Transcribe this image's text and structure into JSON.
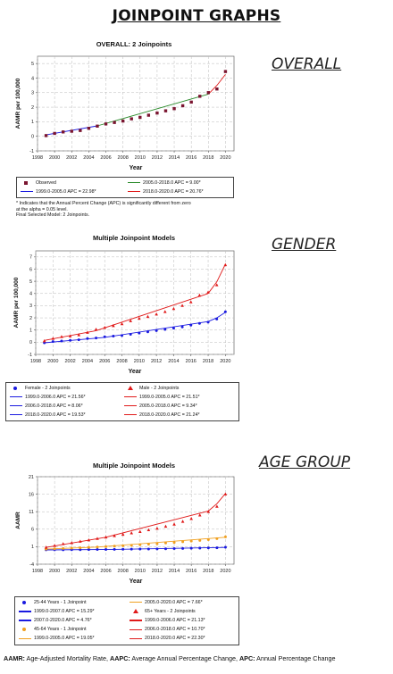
{
  "page": {
    "title": "JOINPOINT GRAPHS",
    "footer_bold": "AAMR:",
    "footer_text": " Age-Adjusted Mortality Rate, ",
    "footer_bold2": "AAPC:",
    "footer_text2": " Average Annual Percentage Change, ",
    "footer_bold3": "APC:",
    "footer_text3": " Annual Percentage Change"
  },
  "sections": {
    "overall": "OVERALL",
    "gender": "GENDER",
    "age_group": "AGE GROUP"
  },
  "colors": {
    "observed": "#7a1530",
    "female": "#1a1ae0",
    "male": "#e01a1a",
    "green": "#2a8a2a",
    "age_25_44": "#1a1ae0",
    "age_45_64": "#f0a020",
    "age_65": "#e01a1a"
  },
  "chart_data": [
    {
      "type": "scatter",
      "title": "OVERALL: 2 Joinpoints",
      "xlabel": "Year",
      "ylabel": "AAMR per 100,000",
      "xlim": [
        1998,
        2021
      ],
      "ylim": [
        -1,
        5.5
      ],
      "xticks": [
        1998,
        2000,
        2002,
        2004,
        2006,
        2008,
        2010,
        2012,
        2014,
        2016,
        2018,
        2020
      ],
      "yticks": [
        -1,
        0,
        1,
        2,
        3,
        4,
        5
      ],
      "grid": true,
      "series": [
        {
          "name": "Observed",
          "marker": "square",
          "color": "#7a1530",
          "x": [
            1999,
            2000,
            2001,
            2002,
            2003,
            2004,
            2005,
            2006,
            2007,
            2008,
            2009,
            2010,
            2011,
            2012,
            2013,
            2014,
            2015,
            2016,
            2017,
            2018,
            2019,
            2020
          ],
          "values": [
            0.05,
            0.2,
            0.3,
            0.35,
            0.4,
            0.55,
            0.7,
            0.85,
            0.95,
            1.05,
            1.2,
            1.3,
            1.45,
            1.6,
            1.75,
            1.9,
            2.1,
            2.35,
            2.75,
            3.0,
            3.25,
            4.45
          ]
        }
      ],
      "fits": [
        {
          "label": "1999.0-2005.0 APC  =  22.98*",
          "color": "#1a1ae0",
          "x": [
            1999,
            2005
          ],
          "y": [
            0.1,
            0.72
          ]
        },
        {
          "label": "2005.0-2018.0 APC  =  9.00*",
          "color": "#2a8a2a",
          "x": [
            2005,
            2018
          ],
          "y": [
            0.72,
            2.9
          ]
        },
        {
          "label": "2018.0-2020.0 APC  =  20.76*",
          "color": "#e01a1a",
          "x": [
            2018,
            2019,
            2020
          ],
          "y": [
            2.9,
            3.5,
            4.25
          ]
        }
      ],
      "notes": [
        "* Indicates that the Annual Percent Change (APC) is significantly different from zero",
        "at the alpha = 0.05 level.",
        "Final Selected Model: 2 Joinpoints."
      ]
    },
    {
      "type": "scatter",
      "title": "Multiple Joinpoint Models",
      "xlabel": "Year",
      "ylabel": "AAMR per 100,000",
      "xlim": [
        1998,
        2021
      ],
      "ylim": [
        -1,
        7.5
      ],
      "xticks": [
        1998,
        2000,
        2002,
        2004,
        2006,
        2008,
        2010,
        2012,
        2014,
        2016,
        2018,
        2020
      ],
      "yticks": [
        -1,
        0,
        1,
        2,
        3,
        4,
        5,
        6,
        7
      ],
      "grid": true,
      "series": [
        {
          "name": "Female - 2 Joinpoints",
          "marker": "circle",
          "color": "#1a1ae0",
          "x": [
            1999,
            2000,
            2001,
            2002,
            2003,
            2004,
            2005,
            2006,
            2007,
            2008,
            2009,
            2010,
            2011,
            2012,
            2013,
            2014,
            2015,
            2016,
            2017,
            2018,
            2019,
            2020
          ],
          "values": [
            -0.05,
            0.05,
            0.1,
            0.15,
            0.2,
            0.3,
            0.35,
            0.45,
            0.5,
            0.55,
            0.65,
            0.75,
            0.85,
            0.95,
            1.05,
            1.15,
            1.25,
            1.4,
            1.55,
            1.65,
            1.9,
            2.5
          ]
        },
        {
          "name": "Male - 2 Joinpoints",
          "marker": "triangle",
          "color": "#e01a1a",
          "x": [
            1999,
            2000,
            2001,
            2002,
            2003,
            2004,
            2005,
            2006,
            2007,
            2008,
            2009,
            2010,
            2011,
            2012,
            2013,
            2014,
            2015,
            2016,
            2017,
            2018,
            2019,
            2020
          ],
          "values": [
            0.1,
            0.3,
            0.45,
            0.5,
            0.6,
            0.8,
            1.05,
            1.2,
            1.35,
            1.5,
            1.75,
            1.95,
            2.1,
            2.3,
            2.5,
            2.75,
            3.0,
            3.3,
            3.85,
            4.1,
            4.7,
            6.35
          ]
        }
      ],
      "fits": [
        {
          "label": "1999.0-2006.0 APC  =  21.56*",
          "color": "#1a1ae0",
          "x": [
            1999,
            2006
          ],
          "y": [
            -0.05,
            0.4
          ]
        },
        {
          "label": "2006.0-2018.0 APC  =  8.06*",
          "color": "#1a1ae0",
          "x": [
            2006,
            2018
          ],
          "y": [
            0.4,
            1.7
          ]
        },
        {
          "label": "2018.0-2020.0 APC  =  19.53*",
          "color": "#1a1ae0",
          "x": [
            2018,
            2019,
            2020
          ],
          "y": [
            1.7,
            2.0,
            2.45
          ]
        },
        {
          "label": "1999.0-2005.0 APC  =  21.51*",
          "color": "#e01a1a",
          "x": [
            1999,
            2005
          ],
          "y": [
            0.15,
            0.95
          ]
        },
        {
          "label": "2005.0-2018.0 APC  =  9.34*",
          "color": "#e01a1a",
          "x": [
            2005,
            2018
          ],
          "y": [
            0.95,
            4.0
          ]
        },
        {
          "label": "2018.0-2020.0 APC  =  21.24*",
          "color": "#e01a1a",
          "x": [
            2018,
            2019,
            2020
          ],
          "y": [
            4.0,
            4.95,
            6.4
          ]
        }
      ]
    },
    {
      "type": "scatter",
      "title": "Multiple Joinpoint Models",
      "xlabel": "Year",
      "ylabel": "AAMR",
      "xlim": [
        1998,
        2021
      ],
      "ylim": [
        -4,
        21
      ],
      "xticks": [
        1998,
        2000,
        2002,
        2004,
        2006,
        2008,
        2010,
        2012,
        2014,
        2016,
        2018,
        2020
      ],
      "yticks": [
        -4,
        1,
        6,
        11,
        16,
        21
      ],
      "grid": true,
      "series": [
        {
          "name": "25-44 Years - 1 Joinpoint",
          "marker": "circle",
          "color": "#1a1ae0",
          "x": [
            1999,
            2000,
            2001,
            2002,
            2003,
            2004,
            2005,
            2006,
            2007,
            2008,
            2009,
            2010,
            2011,
            2012,
            2013,
            2014,
            2015,
            2016,
            2017,
            2018,
            2019,
            2020
          ],
          "values": [
            0.1,
            0.1,
            0.12,
            0.15,
            0.15,
            0.18,
            0.2,
            0.22,
            0.25,
            0.28,
            0.3,
            0.33,
            0.35,
            0.38,
            0.4,
            0.45,
            0.5,
            0.55,
            0.6,
            0.65,
            0.7,
            0.85
          ]
        },
        {
          "name": "45-64 Years - 1 Joinpoint",
          "marker": "circle",
          "color": "#f0a020",
          "x": [
            1999,
            2000,
            2001,
            2002,
            2003,
            2004,
            2005,
            2006,
            2007,
            2008,
            2009,
            2010,
            2011,
            2012,
            2013,
            2014,
            2015,
            2016,
            2017,
            2018,
            2019,
            2020
          ],
          "values": [
            0.3,
            0.4,
            0.5,
            0.6,
            0.7,
            0.8,
            0.9,
            1.0,
            1.15,
            1.25,
            1.4,
            1.55,
            1.7,
            1.85,
            2.05,
            2.2,
            2.4,
            2.6,
            2.8,
            3.0,
            3.3,
            3.8
          ]
        },
        {
          "name": "65+ Years - 2 Joinpoints",
          "marker": "triangle",
          "color": "#e01a1a",
          "x": [
            1999,
            2000,
            2001,
            2002,
            2003,
            2004,
            2005,
            2006,
            2007,
            2008,
            2009,
            2010,
            2011,
            2012,
            2013,
            2014,
            2015,
            2016,
            2017,
            2018,
            2019,
            2020
          ],
          "values": [
            0.8,
            1.3,
            1.8,
            2.1,
            2.5,
            2.9,
            3.3,
            3.7,
            4.1,
            4.5,
            4.9,
            5.3,
            5.8,
            6.2,
            6.8,
            7.4,
            8.2,
            9.0,
            10.0,
            11.0,
            12.5,
            16.0
          ]
        }
      ],
      "fits": [
        {
          "label": "1999.0-2007.0 APC  =  15.29*",
          "color": "#1a1ae0",
          "x": [
            1999,
            2007
          ],
          "y": [
            0.08,
            0.24
          ]
        },
        {
          "label": "2007.0-2020.0 APC  =  4.76*",
          "color": "#1a1ae0",
          "x": [
            2007,
            2020
          ],
          "y": [
            0.24,
            0.8
          ]
        },
        {
          "label": "1999.0-2005.0 APC  =  19.05*",
          "color": "#f0a020",
          "x": [
            1999,
            2005
          ],
          "y": [
            0.3,
            0.9
          ]
        },
        {
          "label": "2005.0-2020.0 APC  =  7.66*",
          "color": "#f0a020",
          "x": [
            2005,
            2020
          ],
          "y": [
            0.9,
            3.7
          ]
        },
        {
          "label": "1999.0-2006.0 APC  =  21.13*",
          "color": "#e01a1a",
          "x": [
            1999,
            2006
          ],
          "y": [
            0.8,
            3.7
          ]
        },
        {
          "label": "2006.0-2018.0 APC  =  10.70*",
          "color": "#e01a1a",
          "x": [
            2006,
            2018
          ],
          "y": [
            3.7,
            11.2
          ]
        },
        {
          "label": "2018.0-2020.0 APC  =  22.30*",
          "color": "#e01a1a",
          "x": [
            2018,
            2019,
            2020
          ],
          "y": [
            11.2,
            13.3,
            16.2
          ]
        }
      ]
    }
  ],
  "legends": {
    "overall": {
      "left": [
        {
          "kind": "square",
          "color": "#7a1530",
          "text": "Observed"
        },
        {
          "kind": "line",
          "color": "#1a1ae0",
          "text": "1999.0-2005.0 APC  =  22.98*"
        }
      ],
      "right": [
        {
          "kind": "line",
          "color": "#2a8a2a",
          "text": "2005.0-2018.0 APC  =  9.00*"
        },
        {
          "kind": "line",
          "color": "#e01a1a",
          "text": "2018.0-2020.0 APC  =  20.76*"
        }
      ]
    },
    "gender": {
      "left": [
        {
          "kind": "dot",
          "color": "#1a1ae0",
          "text": "Female - 2 Joinpoints"
        },
        {
          "kind": "line",
          "color": "#1a1ae0",
          "text": "1999.0-2006.0 APC  =  21.56*"
        },
        {
          "kind": "line",
          "color": "#1a1ae0",
          "text": "2006.0-2018.0 APC  =  8.06*"
        },
        {
          "kind": "line",
          "color": "#1a1ae0",
          "text": "2018.0-2020.0 APC  =  19.53*"
        }
      ],
      "right": [
        {
          "kind": "tri",
          "color": "#e01a1a",
          "text": "Male - 2 Joinpoints"
        },
        {
          "kind": "line",
          "color": "#e01a1a",
          "text": "1999.0-2005.0 APC  =  21.51*"
        },
        {
          "kind": "line",
          "color": "#e01a1a",
          "text": "2005.0-2018.0 APC  =  9.34*"
        },
        {
          "kind": "line",
          "color": "#e01a1a",
          "text": "2018.0-2020.0 APC  =  21.24*"
        }
      ]
    },
    "age": {
      "left": [
        {
          "kind": "dot",
          "color": "#1a1ae0",
          "text": "25-44 Years - 1 Joinpoint"
        },
        {
          "kind": "line",
          "color": "#1a1ae0",
          "text": "1999.0-2007.0 APC  =  15.29*"
        },
        {
          "kind": "line",
          "color": "#1a1ae0",
          "text": "2007.0-2020.0 APC  =  4.76*"
        },
        {
          "kind": "dot",
          "color": "#f0a020",
          "text": "45-64 Years - 1 Joinpoint"
        },
        {
          "kind": "line",
          "color": "#f0a020",
          "text": "1999.0-2005.0 APC  =  19.05*"
        }
      ],
      "right": [
        {
          "kind": "line",
          "color": "#f0a020",
          "text": "2005.0-2020.0 APC  =  7.66*"
        },
        {
          "kind": "tri",
          "color": "#e01a1a",
          "text": "65+ Years - 2 Joinpoints"
        },
        {
          "kind": "line",
          "color": "#e01a1a",
          "text": "1999.0-2006.0 APC  =  21.13*"
        },
        {
          "kind": "line",
          "color": "#e01a1a",
          "text": "2006.0-2018.0 APC  =  10.70*"
        },
        {
          "kind": "line",
          "color": "#e01a1a",
          "text": "2018.0-2020.0 APC  =  22.30*"
        }
      ]
    }
  }
}
